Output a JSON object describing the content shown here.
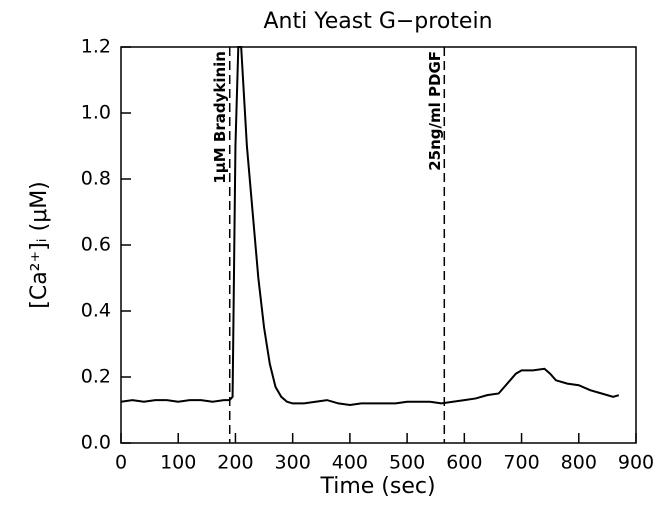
{
  "chart_data": {
    "type": "line",
    "title": "Anti Yeast G−protein",
    "xlabel": "Time (sec)",
    "ylabel": "[Ca²⁺]ᵢ  (μM)",
    "x": [
      0,
      20,
      40,
      60,
      80,
      100,
      120,
      140,
      160,
      180,
      190,
      195,
      200,
      205,
      210,
      215,
      220,
      230,
      240,
      250,
      260,
      270,
      280,
      290,
      300,
      320,
      340,
      360,
      380,
      400,
      420,
      440,
      460,
      480,
      500,
      520,
      540,
      560,
      580,
      600,
      620,
      640,
      660,
      680,
      690,
      700,
      720,
      740,
      750,
      760,
      780,
      800,
      820,
      840,
      860,
      870
    ],
    "values": [
      0.125,
      0.13,
      0.125,
      0.13,
      0.13,
      0.125,
      0.13,
      0.13,
      0.125,
      0.13,
      0.13,
      0.14,
      0.9,
      1.2,
      1.2,
      1.05,
      0.9,
      0.7,
      0.5,
      0.35,
      0.24,
      0.17,
      0.14,
      0.125,
      0.12,
      0.12,
      0.125,
      0.13,
      0.12,
      0.115,
      0.12,
      0.12,
      0.12,
      0.12,
      0.125,
      0.125,
      0.125,
      0.12,
      0.125,
      0.13,
      0.135,
      0.145,
      0.15,
      0.19,
      0.21,
      0.22,
      0.22,
      0.225,
      0.21,
      0.19,
      0.18,
      0.175,
      0.16,
      0.15,
      0.14,
      0.145
    ],
    "color": "#000000",
    "xlim": [
      0,
      900
    ],
    "xticks": [
      0,
      100,
      200,
      300,
      400,
      500,
      600,
      700,
      800,
      900
    ],
    "ylim": [
      0,
      1.2
    ],
    "yticks": [
      {
        "value": 0,
        "label": "0.0"
      },
      0.2,
      0.4,
      0.6,
      0.8,
      {
        "value": 1,
        "label": "1.0"
      },
      1.2
    ],
    "annotations": [
      {
        "text": "1μM Bradykinin",
        "x": 190
      },
      {
        "text": "25ng/ml PDGF",
        "x": 565
      }
    ]
  }
}
